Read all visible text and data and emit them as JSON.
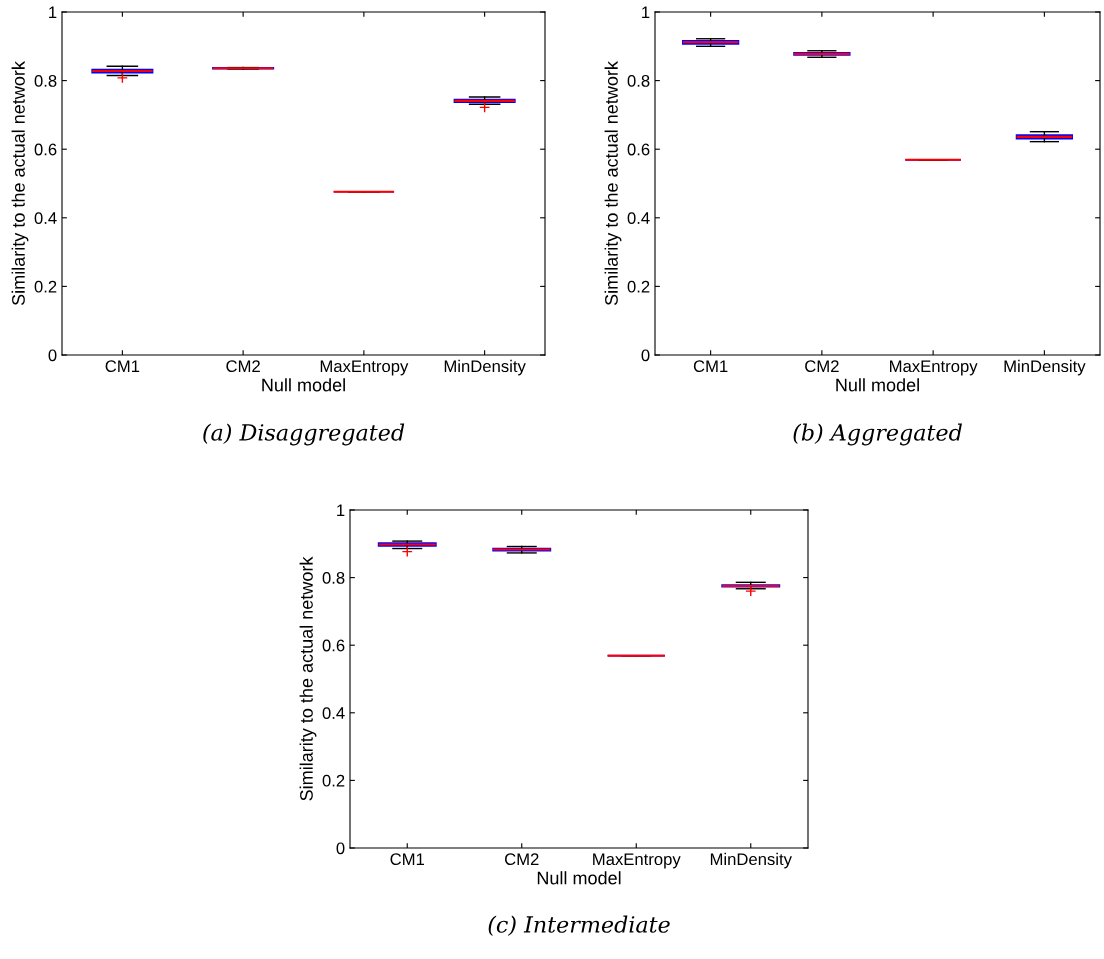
{
  "chart_data": [
    {
      "type": "box",
      "categories": [
        "CM1",
        "CM2",
        "MaxEntropy",
        "MinDensity"
      ],
      "xlabel": "Null model",
      "ylabel": "Similarity to the actual network",
      "ylim": [
        0,
        1
      ],
      "yticks": [
        0,
        0.2,
        0.4,
        0.6,
        0.8,
        1
      ],
      "grid": false,
      "annotations": [
        "(a) Disaggregated"
      ],
      "series": [
        {
          "color": "#0000ff",
          "boxes": [
            {
              "low": 0.815,
              "q1": 0.823,
              "median": 0.828,
              "q3": 0.832,
              "high": 0.842,
              "outliers": [
                0.808
              ]
            },
            {
              "low": 0.834,
              "q1": 0.835,
              "median": 0.836,
              "q3": 0.837,
              "high": 0.838
            },
            {
              "low": 0.476,
              "q1": 0.476,
              "median": 0.476,
              "q3": 0.476,
              "high": 0.476
            },
            {
              "low": 0.731,
              "q1": 0.737,
              "median": 0.741,
              "q3": 0.745,
              "high": 0.752,
              "outliers": [
                0.722
              ]
            }
          ]
        }
      ]
    },
    {
      "type": "box",
      "categories": [
        "CM1",
        "CM2",
        "MaxEntropy",
        "MinDensity"
      ],
      "xlabel": "Null model",
      "ylabel": "Similarity to the actual network",
      "ylim": [
        0,
        1
      ],
      "yticks": [
        0,
        0.2,
        0.4,
        0.6,
        0.8,
        1
      ],
      "grid": false,
      "annotations": [
        "(b) Aggregated"
      ],
      "series": [
        {
          "color": "#0000ff",
          "boxes": [
            {
              "low": 0.9,
              "q1": 0.907,
              "median": 0.912,
              "q3": 0.916,
              "high": 0.922
            },
            {
              "low": 0.868,
              "q1": 0.875,
              "median": 0.878,
              "q3": 0.881,
              "high": 0.887
            },
            {
              "low": 0.569,
              "q1": 0.569,
              "median": 0.569,
              "q3": 0.569,
              "high": 0.569
            },
            {
              "low": 0.622,
              "q1": 0.631,
              "median": 0.636,
              "q3": 0.641,
              "high": 0.651
            }
          ]
        }
      ]
    },
    {
      "type": "box",
      "categories": [
        "CM1",
        "CM2",
        "MaxEntropy",
        "MinDensity"
      ],
      "xlabel": "Null model",
      "ylabel": "Similarity to the actual network",
      "ylim": [
        0,
        1
      ],
      "yticks": [
        0,
        0.2,
        0.4,
        0.6,
        0.8,
        1
      ],
      "grid": false,
      "annotations": [
        "(c) Intermediate"
      ],
      "series": [
        {
          "color": "#0000ff",
          "boxes": [
            {
              "low": 0.886,
              "q1": 0.894,
              "median": 0.898,
              "q3": 0.902,
              "high": 0.908,
              "outliers": [
                0.877
              ]
            },
            {
              "low": 0.873,
              "q1": 0.88,
              "median": 0.883,
              "q3": 0.886,
              "high": 0.892
            },
            {
              "low": 0.569,
              "q1": 0.569,
              "median": 0.569,
              "q3": 0.569,
              "high": 0.569
            },
            {
              "low": 0.767,
              "q1": 0.773,
              "median": 0.775,
              "q3": 0.778,
              "high": 0.786,
              "outliers": [
                0.76
              ]
            }
          ]
        }
      ]
    }
  ]
}
